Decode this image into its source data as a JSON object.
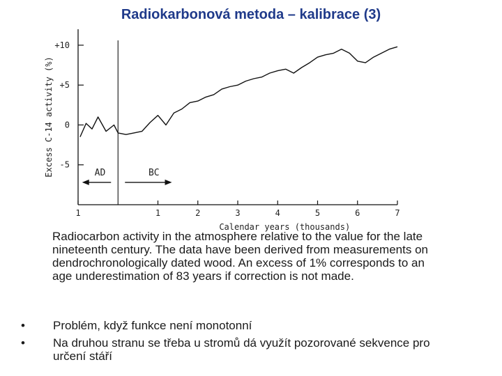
{
  "slide": {
    "title": "Radiokarbonová metoda – kalibrace (3)",
    "caption": "Radiocarbon activity in the atmosphere relative to the value for the late nineteenth century. The data have been derived from measurements on dendrochronologically dated wood. An excess of 1% corresponds to an age underestimation of 83 years if correction is not made.",
    "bullets": [
      "Problém, když funkce není monotonní",
      "Na druhou stranu se třeba u stromů dá využít pozorované sekvence pro určení stáří"
    ],
    "bullet_symbol": "•"
  },
  "chart_data": {
    "type": "line",
    "xlabel": "Calendar years (thousands)",
    "ylabel": "Excess C-14 activity (%)",
    "x_tick_labels": [
      "1",
      "1",
      "2",
      "3",
      "4",
      "5",
      "6",
      "7"
    ],
    "y_tick_labels": [
      "+10",
      "+5",
      "0",
      "-5"
    ],
    "y_ticks": [
      10,
      5,
      0,
      -5
    ],
    "ylim": [
      -10,
      12
    ],
    "xlim_thousands_from_AD1000": [
      -1.0,
      7.0
    ],
    "divider_label_left": "AD",
    "divider_label_right": "BC",
    "grid": false,
    "line_color": "#111111",
    "x": [
      -0.95,
      -0.8,
      -0.65,
      -0.5,
      -0.3,
      -0.1,
      0.0,
      0.2,
      0.4,
      0.6,
      0.8,
      1.0,
      1.2,
      1.4,
      1.6,
      1.8,
      2.0,
      2.2,
      2.4,
      2.6,
      2.8,
      3.0,
      3.2,
      3.4,
      3.6,
      3.8,
      4.0,
      4.2,
      4.4,
      4.6,
      4.8,
      5.0,
      5.2,
      5.4,
      5.6,
      5.8,
      6.0,
      6.2,
      6.4,
      6.6,
      6.8,
      7.0
    ],
    "y": [
      -1.5,
      0.2,
      -0.5,
      1.0,
      -0.8,
      0.0,
      -1.0,
      -1.2,
      -1.0,
      -0.8,
      0.3,
      1.2,
      0.0,
      1.5,
      2.0,
      2.8,
      3.0,
      3.5,
      3.8,
      4.5,
      4.8,
      5.0,
      5.5,
      5.8,
      6.0,
      6.5,
      6.8,
      7.0,
      6.5,
      7.2,
      7.8,
      8.5,
      8.8,
      9.0,
      9.5,
      9.0,
      8.0,
      7.8,
      8.5,
      9.0,
      9.5,
      9.8
    ]
  }
}
